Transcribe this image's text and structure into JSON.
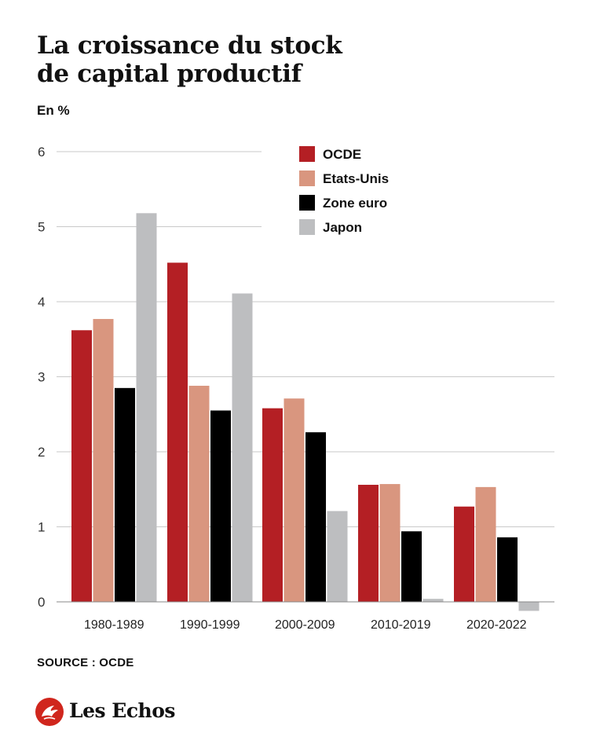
{
  "title_lines": [
    "La croissance du stock",
    "de capital productif"
  ],
  "unit_label": "En %",
  "source": "SOURCE : OCDE",
  "brand": {
    "name": "Les Echos",
    "color": "#d0261d",
    "icon": "les-echos-logo-icon"
  },
  "chart_data": {
    "type": "bar",
    "categories": [
      "1980-1989",
      "1990-1999",
      "2000-2009",
      "2010-2019",
      "2020-2022"
    ],
    "series": [
      {
        "name": "OCDE",
        "color": "#b41f24",
        "values": [
          3.62,
          4.52,
          2.58,
          1.56,
          1.27
        ]
      },
      {
        "name": "Etats-Unis",
        "color": "#d9967f",
        "values": [
          3.77,
          2.88,
          2.71,
          1.57,
          1.53
        ]
      },
      {
        "name": "Zone euro",
        "color": "#000000",
        "values": [
          2.85,
          2.55,
          2.26,
          0.94,
          0.86
        ]
      },
      {
        "name": "Japon",
        "color": "#bdbec0",
        "values": [
          5.18,
          4.11,
          1.21,
          0.04,
          -0.12
        ]
      }
    ],
    "ylim": [
      0,
      6
    ],
    "yticks": [
      "0",
      "1",
      "2",
      "3",
      "4",
      "5",
      "6"
    ],
    "grid": true,
    "legend_position": "top-right"
  }
}
